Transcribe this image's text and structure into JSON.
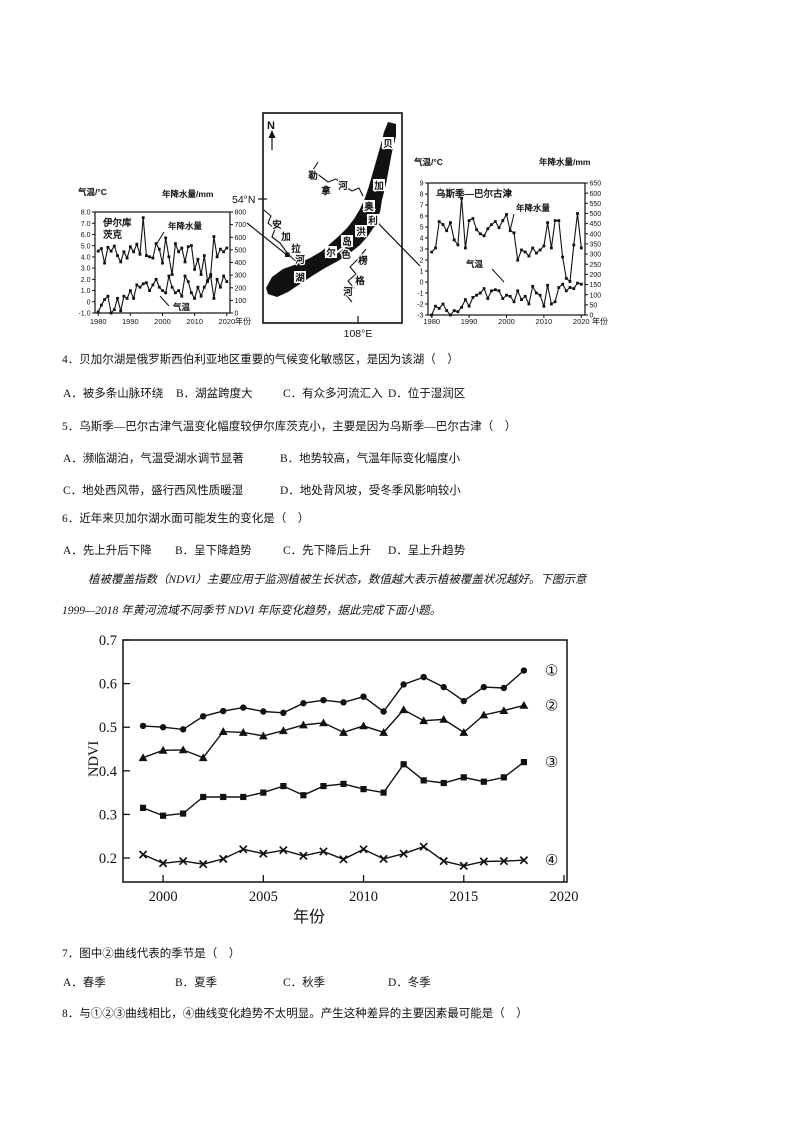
{
  "figure": {
    "irkutsk": {
      "temp_axis": "气温/°C",
      "precip_axis": "年降水量/mm",
      "station_l1": "伊尔库",
      "station_l2": "茨克",
      "precip_series": "年降水量",
      "temp_series": "气温",
      "x_unit": "年份"
    },
    "map": {
      "north": "N",
      "lat": "54°N",
      "lon": "108°E",
      "lake": [
        "贝",
        "加",
        "尔",
        "湖"
      ],
      "island": [
        "奥",
        "利",
        "洪",
        "岛"
      ],
      "lena": [
        "勒",
        "拿",
        "河"
      ],
      "angara": [
        "安",
        "加",
        "拉",
        "河"
      ],
      "selenga": [
        "色",
        "楞",
        "格",
        "河"
      ]
    },
    "ust": {
      "temp_axis": "气温/°C",
      "precip_axis": "年降水量/mm",
      "station": "乌斯季—巴尔古津",
      "precip_series": "年降水量",
      "temp_series": "气温",
      "x_unit": "年份"
    },
    "ndvi": {
      "ylabel": "NDVI",
      "xlabel": "年份"
    }
  },
  "questions": {
    "q4": {
      "stem": "4．贝加尔湖是俄罗斯西伯利亚地区重要的气候变化敏感区，是因为该湖（　）",
      "optA": "A．被多条山脉环绕",
      "optB": "B．湖盆跨度大",
      "optC": "C．有众多河流汇入",
      "optD": "D．位于湿润区"
    },
    "q5": {
      "stem": "5．乌斯季—巴尔古津气温变化幅度较伊尔库茨克小，主要是因为乌斯季—巴尔古津（　）",
      "optA": "A．濒临湖泊，气温受湖水调节显著",
      "optB": "B．地势较高，气温年际变化幅度小",
      "optC": "C．地处西风带，盛行西风性质暖湿",
      "optD": "D．地处背风坡，受冬季风影响较小"
    },
    "q6": {
      "stem": "6．近年来贝加尔湖水面可能发生的变化是（　）",
      "optA": "A．先上升后下降",
      "optB": "B．呈下降趋势",
      "optC": "C．先下降后上升",
      "optD": "D．呈上升趋势"
    },
    "q7": {
      "stem": "7．图中②曲线代表的季节是（　）",
      "optA": "A．春季",
      "optB": "B．夏季",
      "optC": "C．秋季",
      "optD": "D．冬季"
    },
    "q8": {
      "stem": "8．与①②③曲线相比，④曲线变化趋势不太明显。产生这种差异的主要因素最可能是（　）"
    }
  },
  "passage": {
    "line1": "植被覆盖指数（NDVI）主要应用于监测植被生长状态，数值越大表示植被覆盖状况越好。下图示意",
    "line2": "1999—2018 年黄河流域不同季节 NDVI 年际变化趋势，据此完成下面小题。"
  },
  "chart_data": [
    {
      "id": "irkutsk",
      "type": "line",
      "title": "伊尔库茨克气温与年降水量年际变化",
      "x_start": 1980,
      "x_range": [
        1979,
        2021
      ],
      "x_ticks": [
        "1980",
        "1990",
        "2000",
        "2010",
        "2020"
      ],
      "x_label": "年份",
      "y_left": {
        "title": "气温/°C",
        "ticks": [
          "8.0",
          "7.0",
          "6.0",
          "5.0",
          "4.0",
          "3.0",
          "2.0",
          "1.0",
          "0",
          "-1.0"
        ],
        "range": [
          8,
          -1
        ]
      },
      "y_right": {
        "title": "年降水量/mm",
        "ticks": [
          "800",
          "700",
          "600",
          "500",
          "400",
          "300",
          "200",
          "100",
          "0"
        ],
        "range": [
          800,
          0
        ]
      },
      "series": [
        {
          "name": "年降水量",
          "axis": "right",
          "values": [
            490,
            510,
            395,
            520,
            490,
            530,
            455,
            405,
            485,
            435,
            525,
            485,
            545,
            465,
            755,
            455,
            445,
            435,
            550,
            505,
            395,
            595,
            445,
            305,
            550,
            485,
            515,
            405,
            525,
            535,
            345,
            425,
            305,
            455,
            255,
            305,
            605,
            445,
            505,
            485,
            515
          ]
        },
        {
          "name": "气温",
          "axis": "left",
          "values": [
            -0.9,
            -0.3,
            0.2,
            0.5,
            -1.0,
            -0.7,
            0.3,
            -0.8,
            0.5,
            0.3,
            1.0,
            0.3,
            1.5,
            1.3,
            1.6,
            1.7,
            1.0,
            1.5,
            2.0,
            1.3,
            1.0,
            0.8,
            2.3,
            1.3,
            0.8,
            1.0,
            0.5,
            2.3,
            1.8,
            0.8,
            0.3,
            1.3,
            0.5,
            1.3,
            1.8,
            2.3,
            0.3,
            2.0,
            1.3,
            2.3,
            1.8
          ]
        }
      ]
    },
    {
      "id": "ust",
      "type": "line",
      "title": "乌斯季—巴尔古津气温与年降水量年际变化",
      "x_start": 1980,
      "x_range": [
        1979,
        2021
      ],
      "x_ticks": [
        "1980",
        "1990",
        "2000",
        "2010",
        "2020"
      ],
      "x_label": "年份",
      "y_left": {
        "title": "气温/°C",
        "ticks": [
          "9",
          "8",
          "7",
          "6",
          "5",
          "4",
          "3",
          "2",
          "1",
          "0",
          "-1",
          "-2",
          "-3"
        ],
        "range": [
          9,
          -3
        ]
      },
      "y_right": {
        "title": "年降水量/mm",
        "ticks": [
          "650",
          "600",
          "550",
          "500",
          "450",
          "400",
          "350",
          "300",
          "250",
          "200",
          "150",
          "100",
          "50",
          "0"
        ],
        "range": [
          650,
          0
        ]
      },
      "series": [
        {
          "name": "年降水量",
          "axis": "right",
          "values": [
            310,
            330,
            460,
            445,
            415,
            455,
            370,
            345,
            575,
            330,
            465,
            475,
            420,
            400,
            390,
            425,
            445,
            460,
            430,
            465,
            495,
            415,
            405,
            270,
            320,
            310,
            290,
            330,
            305,
            320,
            340,
            455,
            330,
            465,
            465,
            285,
            180,
            165,
            345,
            500,
            330
          ]
        },
        {
          "name": "气温",
          "axis": "left",
          "values": [
            -3.0,
            -2.2,
            -2.4,
            -2.0,
            -2.6,
            -3.0,
            -2.6,
            -2.7,
            -2.3,
            -1.6,
            -2.2,
            -1.4,
            -1.2,
            -1.0,
            -0.6,
            -1.5,
            -0.8,
            -0.7,
            -0.8,
            -1.5,
            -1.2,
            -1.3,
            -1.8,
            -0.8,
            -1.6,
            -1.3,
            -2.0,
            -0.4,
            -1.0,
            -1.2,
            -2.2,
            -0.3,
            -2.0,
            -1.8,
            -0.5,
            -0.2,
            -0.8,
            -0.5,
            -0.6,
            -0.1,
            -0.2
          ]
        }
      ]
    },
    {
      "id": "ndvi",
      "type": "line",
      "title": "1999—2018年黄河流域不同季节NDVI年际变化趋势",
      "ylabel": "NDVI",
      "xlabel": "年份",
      "x_start": 1999,
      "x_range": [
        1998,
        2020.15
      ],
      "y_range": [
        0.145,
        0.7
      ],
      "x_ticks": [
        "2000",
        "2005",
        "2010",
        "2015",
        "2020"
      ],
      "y_ticks": [
        "0.7",
        "0.6",
        "0.5",
        "0.4",
        "0.3",
        "0.2"
      ],
      "years": [
        1999,
        2000,
        2001,
        2002,
        2003,
        2004,
        2005,
        2006,
        2007,
        2008,
        2009,
        2010,
        2011,
        2012,
        2013,
        2014,
        2015,
        2016,
        2017,
        2018
      ],
      "series": [
        {
          "name": "①",
          "marker": "circle",
          "values": [
            0.503,
            0.5,
            0.495,
            0.525,
            0.537,
            0.545,
            0.536,
            0.533,
            0.555,
            0.562,
            0.557,
            0.57,
            0.536,
            0.598,
            0.615,
            0.592,
            0.56,
            0.592,
            0.59,
            0.63
          ]
        },
        {
          "name": "②",
          "marker": "triangle",
          "values": [
            0.43,
            0.447,
            0.448,
            0.43,
            0.49,
            0.488,
            0.48,
            0.492,
            0.505,
            0.51,
            0.488,
            0.503,
            0.488,
            0.54,
            0.515,
            0.518,
            0.488,
            0.528,
            0.538,
            0.55
          ]
        },
        {
          "name": "③",
          "marker": "square",
          "values": [
            0.315,
            0.297,
            0.302,
            0.34,
            0.34,
            0.34,
            0.35,
            0.365,
            0.344,
            0.365,
            0.37,
            0.358,
            0.35,
            0.415,
            0.378,
            0.372,
            0.385,
            0.375,
            0.385,
            0.42
          ]
        },
        {
          "name": "④",
          "marker": "x",
          "values": [
            0.208,
            0.188,
            0.193,
            0.186,
            0.198,
            0.22,
            0.21,
            0.218,
            0.205,
            0.215,
            0.197,
            0.22,
            0.198,
            0.21,
            0.226,
            0.193,
            0.182,
            0.192,
            0.193,
            0.195
          ]
        }
      ]
    }
  ]
}
